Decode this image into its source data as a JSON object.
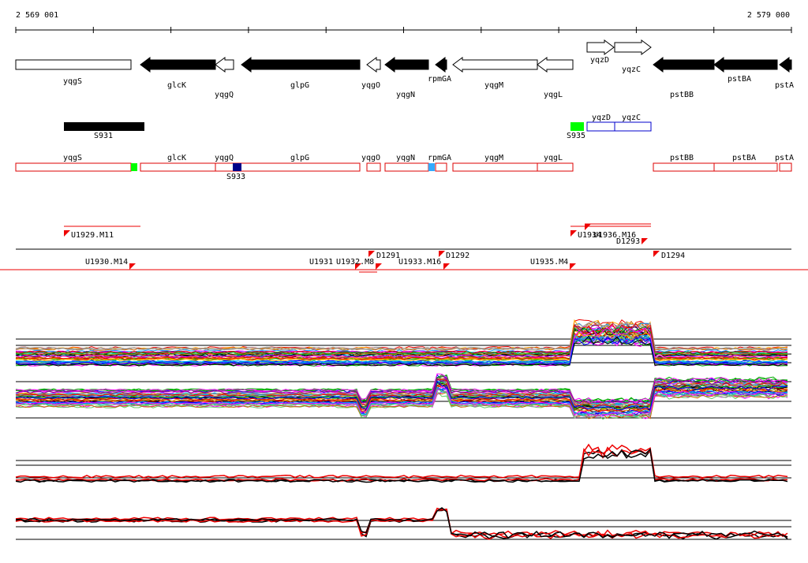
{
  "ruler": {
    "start": "2 569 001",
    "end": "2 579 000"
  },
  "genes": [
    "yqgS",
    "glcK",
    "yqgQ",
    "glpG",
    "yqgO",
    "yqgN",
    "rpmGA",
    "yqgM",
    "yqgL",
    "yqzD",
    "yqzC",
    "pstBB",
    "pstBA",
    "pstA"
  ],
  "segments": {
    "labels": [
      "S931",
      "S935"
    ],
    "genes": [
      "yqzD",
      "yqzC"
    ]
  },
  "annotation": {
    "genes": [
      "yqgS",
      "glcK",
      "yqgQ",
      "glpG",
      "yqgO",
      "yqgN",
      "rpmGA",
      "yqgM",
      "yqgL",
      "pstBB",
      "pstBA",
      "pstA"
    ],
    "label": "S933"
  },
  "transcripts": [
    "U1929.M11",
    "U1930.M14",
    "U1931",
    "U1932.M8",
    "D1291",
    "U1933.M16",
    "D1292",
    "U1935.M4",
    "U1934",
    "U1936.M16",
    "D1293",
    "D1294"
  ]
}
